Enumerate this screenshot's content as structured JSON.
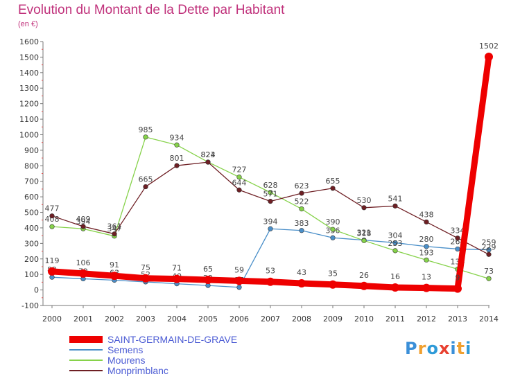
{
  "header": {
    "title": "Evolution du Montant de la Dette par Habitant",
    "subtitle": "(en €)"
  },
  "logo": {
    "text": "Proxiti",
    "colors": [
      "#3a8fd8",
      "#f0a030",
      "#2e9ad8",
      "#e84030",
      "#3a8fd8",
      "#f0a030",
      "#2e9ad8"
    ]
  },
  "chart_data": {
    "type": "line",
    "title": "Evolution du Montant de la Dette par Habitant",
    "subtitle": "(en €)",
    "xlabel": "",
    "ylabel": "",
    "x": [
      2000,
      2001,
      2002,
      2003,
      2004,
      2005,
      2006,
      2007,
      2008,
      2009,
      2010,
      2011,
      2012,
      2013,
      2014
    ],
    "ylim": [
      -100,
      1600
    ],
    "yticks": [
      -100,
      0,
      100,
      200,
      300,
      400,
      500,
      600,
      700,
      800,
      900,
      1000,
      1100,
      1200,
      1300,
      1400,
      1500,
      1600
    ],
    "grid": false,
    "legend_position": "bottom-left",
    "series": [
      {
        "name": "SAINT-GERMAIN-DE-GRAVE",
        "color": "#ee0000",
        "emphasis": true,
        "values": [
          119,
          106,
          91,
          75,
          71,
          65,
          59,
          53,
          43,
          35,
          26,
          16,
          13,
          9,
          1502
        ]
      },
      {
        "name": "Semens",
        "color": "#4a8fc9",
        "values": [
          82,
          72,
          63,
          52,
          40,
          29,
          17,
          394,
          383,
          336,
          321,
          304,
          280,
          264,
          259
        ]
      },
      {
        "name": "Mourens",
        "color": "#86d24a",
        "values": [
          408,
          394,
          347,
          985,
          934,
          824,
          727,
          628,
          522,
          390,
          318,
          253,
          193,
          134,
          73
        ]
      },
      {
        "name": "Monprimblanc",
        "color": "#6e1f24",
        "values": [
          477,
          409,
          361,
          665,
          801,
          823,
          644,
          571,
          623,
          655,
          530,
          541,
          438,
          334,
          229
        ]
      }
    ]
  }
}
